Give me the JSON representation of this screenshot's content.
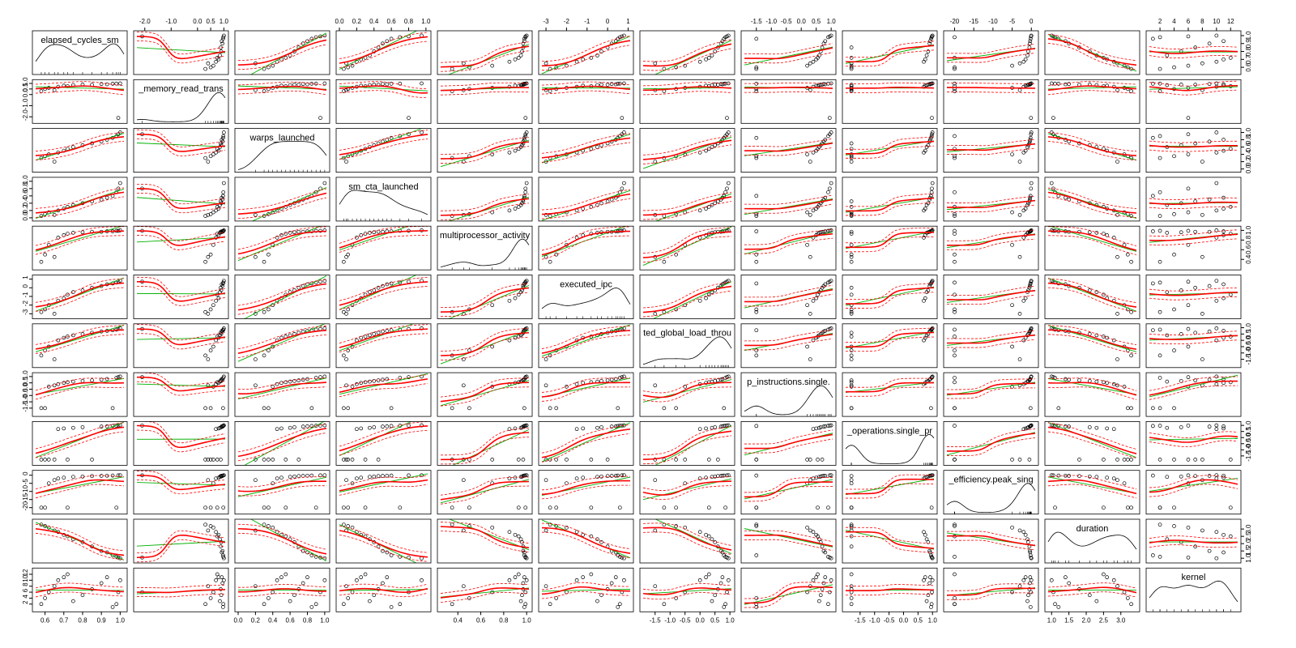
{
  "chart_data": {
    "type": "scatter-matrix",
    "point_color": "#000000",
    "fit_color": "#00b000",
    "smooth_color": "#ff0000",
    "variables": [
      {
        "name": "elapsed_cycles_sm",
        "lim": [
          0.55,
          1.02
        ],
        "ticks": [
          0.6,
          0.7,
          0.8,
          0.9,
          {
            "value": 1,
            "label": "1.0"
          }
        ],
        "values": [
          0.58,
          0.6,
          0.62,
          0.65,
          0.67,
          0.7,
          0.72,
          0.75,
          0.8,
          0.85,
          0.9,
          0.93,
          0.96,
          0.98,
          0.99,
          1.0
        ]
      },
      {
        "name": "_memory_read_trans",
        "lim": [
          -2.3,
          1.05
        ],
        "ticks": [
          {
            "value": -2,
            "label": "-2.0"
          },
          {
            "value": -1,
            "label": "-1.0"
          },
          {
            "value": 0,
            "label": "0.0"
          },
          0.5,
          {
            "value": 1,
            "label": "1.0"
          }
        ],
        "values": [
          0.3,
          0.5,
          0.6,
          0.4,
          0.7,
          0.8,
          0.75,
          0.85,
          0.9,
          0.88,
          0.95,
          0.92,
          0.97,
          0.98,
          -2.1,
          1.0
        ]
      },
      {
        "name": "warps_launched",
        "lim": [
          0,
          1.02
        ],
        "ticks": [
          {
            "value": 0,
            "label": "0.0"
          },
          0.2,
          0.4,
          0.6,
          0.8,
          {
            "value": 1,
            "label": "1.0"
          }
        ],
        "values": [
          0.3,
          0.35,
          0.4,
          0.2,
          0.45,
          0.5,
          0.55,
          0.6,
          0.65,
          0.7,
          0.75,
          0.8,
          0.85,
          0.9,
          0.95,
          1.0
        ]
      },
      {
        "name": "sm_cta_launched",
        "lim": [
          0,
          1.02
        ],
        "ticks": [
          {
            "value": 0,
            "label": "0.0"
          },
          0.2,
          0.4,
          0.6,
          0.8,
          {
            "value": 1,
            "label": "1.0"
          }
        ],
        "values": [
          0.05,
          0.1,
          0.15,
          0.08,
          0.2,
          0.25,
          0.3,
          0.35,
          0.4,
          0.45,
          0.5,
          0.55,
          0.6,
          0.7,
          0.8,
          0.95
        ]
      },
      {
        "name": "multiprocessor_activity",
        "lim": [
          0.25,
          1.02
        ],
        "ticks": [
          0.4,
          0.6,
          0.8,
          {
            "value": 1,
            "label": "1.0"
          }
        ],
        "values": [
          0.35,
          0.5,
          0.7,
          0.45,
          0.85,
          0.9,
          0.93,
          0.95,
          0.96,
          0.97,
          0.97,
          0.98,
          0.98,
          0.99,
          0.99,
          1.0
        ]
      },
      {
        "name": "executed_ipc",
        "lim": [
          -3.2,
          1.1
        ],
        "ticks": [
          -3,
          -2,
          -1,
          0,
          1
        ],
        "values": [
          -2.8,
          -2.5,
          -2.0,
          -3.0,
          -1.5,
          -1.2,
          -0.8,
          -0.5,
          -0.3,
          0.0,
          0.2,
          0.4,
          0.5,
          0.6,
          0.7,
          0.8
        ]
      },
      {
        "name": "ted_global_load_throu",
        "lim": [
          -1.9,
          1.05
        ],
        "ticks": [
          -1.5,
          {
            "value": -1,
            "label": "-1.0"
          },
          -0.5,
          {
            "value": 0,
            "label": "0.0"
          },
          0.5,
          {
            "value": 1,
            "label": "1.0"
          }
        ],
        "values": [
          -1.2,
          -0.8,
          -0.5,
          -1.5,
          0.0,
          0.2,
          0.3,
          0.4,
          0.5,
          0.6,
          0.7,
          0.75,
          0.8,
          0.85,
          0.9,
          0.95
        ]
      },
      {
        "name": "p_instructions.single.",
        "lim": [
          -1.9,
          1.05
        ],
        "ticks": [
          -1.5,
          {
            "value": -1,
            "label": "-1.0"
          },
          -0.5,
          {
            "value": 0,
            "label": "0.0"
          },
          0.5,
          {
            "value": 1,
            "label": "1.0"
          }
        ],
        "values": [
          -1.5,
          -1.5,
          0.2,
          0.3,
          0.4,
          0.5,
          0.55,
          0.6,
          0.65,
          0.7,
          0.75,
          0.8,
          -1.5,
          0.9,
          0.95,
          1.0
        ]
      },
      {
        "name": "_operations.single_pr",
        "lim": [
          -2.0,
          1.05
        ],
        "ticks": [
          -1.5,
          {
            "value": -1,
            "label": "-1.0"
          },
          -0.5,
          {
            "value": 0,
            "label": "0.0"
          },
          0.5,
          {
            "value": 1,
            "label": "1.0"
          }
        ],
        "values": [
          -1.8,
          -1.8,
          -1.8,
          -1.8,
          0.7,
          0.75,
          -1.8,
          0.8,
          0.85,
          -1.8,
          0.9,
          0.92,
          0.95,
          0.97,
          0.98,
          1.0
        ]
      },
      {
        "name": "_efficiency.peak_sing",
        "lim": [
          -22,
          1
        ],
        "ticks": [
          -20,
          -15,
          -10,
          -5,
          0
        ],
        "values": [
          -20,
          -20,
          -5,
          -3,
          -2,
          -1.5,
          -20,
          -1,
          -0.8,
          -0.5,
          -0.4,
          -0.3,
          -0.2,
          -20,
          -0.1,
          0
        ]
      },
      {
        "name": "duration",
        "lim": [
          0.9,
          3.45
        ],
        "ticks": [
          {
            "value": 1,
            "label": "1.0"
          },
          1.5,
          {
            "value": 2,
            "label": "2.0"
          },
          2.5,
          {
            "value": 3,
            "label": "3.0"
          }
        ],
        "values": [
          3.3,
          3.2,
          3.1,
          2.9,
          2.8,
          2.6,
          2.5,
          2.3,
          2.1,
          1.8,
          1.5,
          1.4,
          1.2,
          1.1,
          1.05,
          1.0
        ]
      },
      {
        "name": "kernel",
        "lim": [
          0.5,
          13
        ],
        "ticks": [
          2,
          4,
          6,
          8,
          10,
          12
        ],
        "values": [
          2,
          4,
          6,
          8,
          10,
          11,
          12,
          3,
          5,
          7,
          9,
          11,
          1,
          2,
          6,
          10
        ]
      }
    ]
  }
}
